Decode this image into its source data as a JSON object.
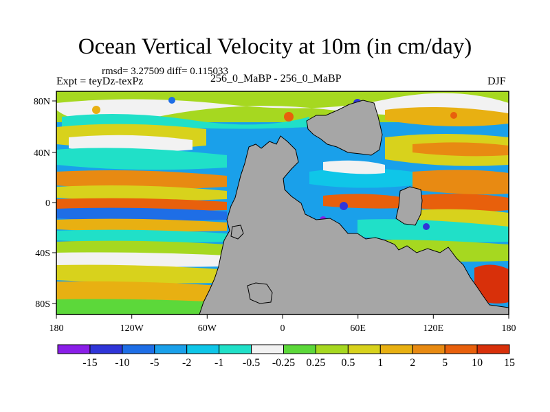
{
  "header": {
    "title": "Ocean Vertical Velocity at 10m (in cm/day)",
    "stats": "rmsd= 3.27509 diff= 0.115033",
    "expt": "Expt = teyDz-texPz",
    "case": "256_0_MaBP - 256_0_MaBP",
    "season": "DJF"
  },
  "axes": {
    "x_ticks": [
      "180",
      "120W",
      "60W",
      "0",
      "60E",
      "120E",
      "180"
    ],
    "y_ticks": [
      "80N",
      "40N",
      "0",
      "40S",
      "80S"
    ]
  },
  "colorbar": {
    "labels": [
      "-15",
      "-10",
      "-5",
      "-2",
      "-1",
      "-0.5",
      "-0.25",
      "0.25",
      "0.5",
      "1",
      "2",
      "5",
      "10",
      "15"
    ],
    "colors": [
      "#8a1ee8",
      "#2f35d8",
      "#1e6ee6",
      "#1aa0ea",
      "#0fc6e8",
      "#20e0c8",
      "#f2f2f2",
      "#5cd83a",
      "#a6d820",
      "#d8d21c",
      "#e8b012",
      "#e88a12",
      "#e8600c",
      "#d8300a"
    ]
  },
  "map": {
    "land_color": "#a6a6a6"
  }
}
